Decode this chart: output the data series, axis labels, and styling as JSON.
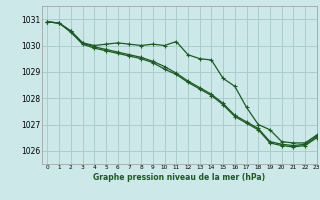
{
  "title": "Graphe pression niveau de la mer (hPa)",
  "bg_color": "#cce8e8",
  "grid_color": "#aacccc",
  "line_color": "#1a5c20",
  "xlim": [
    -0.5,
    23
  ],
  "ylim": [
    1025.5,
    1031.5
  ],
  "yticks": [
    1026,
    1027,
    1028,
    1029,
    1030,
    1031
  ],
  "xticks": [
    0,
    1,
    2,
    3,
    4,
    5,
    6,
    7,
    8,
    9,
    10,
    11,
    12,
    13,
    14,
    15,
    16,
    17,
    18,
    19,
    20,
    21,
    22,
    23
  ],
  "line1_x": [
    0,
    1,
    2,
    3,
    4,
    5,
    6,
    7,
    8,
    9,
    10,
    11,
    12,
    13,
    14,
    15,
    16,
    17,
    18,
    19,
    20,
    21,
    22,
    23
  ],
  "line1_y": [
    1030.9,
    1030.85,
    1030.55,
    1030.1,
    1030.0,
    1030.05,
    1030.1,
    1030.05,
    1030.0,
    1030.05,
    1030.0,
    1030.15,
    1029.65,
    1029.5,
    1029.45,
    1028.75,
    1028.45,
    1027.65,
    1027.0,
    1026.8,
    1026.35,
    1026.3,
    1026.3,
    1026.6
  ],
  "line2_x": [
    0,
    1,
    2,
    3,
    4,
    5,
    6,
    7,
    8,
    9,
    10,
    11,
    12,
    13,
    14,
    15,
    16,
    17,
    18,
    19,
    20,
    21,
    22,
    23
  ],
  "line2_y": [
    1030.9,
    1030.85,
    1030.55,
    1030.1,
    1029.95,
    1029.85,
    1029.75,
    1029.65,
    1029.55,
    1029.4,
    1029.2,
    1028.95,
    1028.65,
    1028.4,
    1028.15,
    1027.8,
    1027.35,
    1027.1,
    1026.85,
    1026.35,
    1026.25,
    1026.2,
    1026.25,
    1026.55
  ],
  "line3_x": [
    0,
    1,
    2,
    3,
    4,
    5,
    6,
    7,
    8,
    9,
    10,
    11,
    12,
    13,
    14,
    15,
    16,
    17,
    18,
    19,
    20,
    21,
    22,
    23
  ],
  "line3_y": [
    1030.9,
    1030.85,
    1030.5,
    1030.05,
    1029.9,
    1029.8,
    1029.7,
    1029.6,
    1029.5,
    1029.35,
    1029.1,
    1028.9,
    1028.6,
    1028.35,
    1028.1,
    1027.75,
    1027.3,
    1027.05,
    1026.8,
    1026.3,
    1026.2,
    1026.15,
    1026.2,
    1026.5
  ]
}
